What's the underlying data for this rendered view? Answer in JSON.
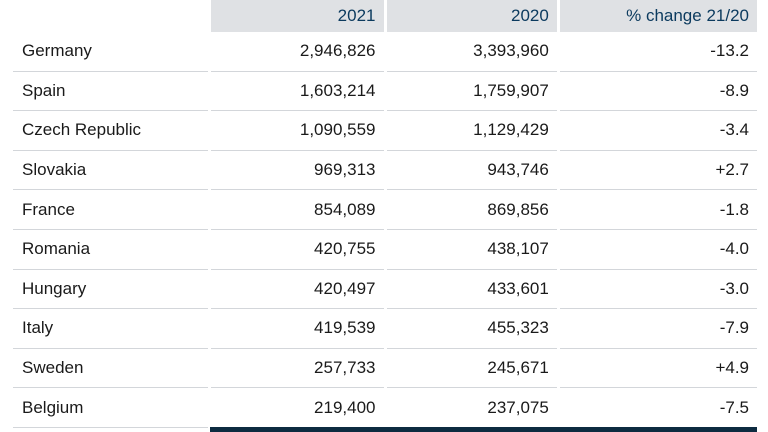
{
  "table": {
    "headers": [
      "",
      "2021",
      "2020",
      "% change 21/20"
    ],
    "rows": [
      {
        "country": "Germany",
        "y2021": "2,946,826",
        "y2020": "3,393,960",
        "change": "-13.2"
      },
      {
        "country": "Spain",
        "y2021": "1,603,214",
        "y2020": "1,759,907",
        "change": "-8.9"
      },
      {
        "country": "Czech Republic",
        "y2021": "1,090,559",
        "y2020": "1,129,429",
        "change": "-3.4"
      },
      {
        "country": "Slovakia",
        "y2021": "969,313",
        "y2020": "943,746",
        "change": "+2.7"
      },
      {
        "country": "France",
        "y2021": "854,089",
        "y2020": "869,856",
        "change": "-1.8"
      },
      {
        "country": "Romania",
        "y2021": "420,755",
        "y2020": "438,107",
        "change": "-4.0"
      },
      {
        "country": "Hungary",
        "y2021": "420,497",
        "y2020": "433,601",
        "change": "-3.0"
      },
      {
        "country": "Italy",
        "y2021": "419,539",
        "y2020": "455,323",
        "change": "-7.9"
      },
      {
        "country": "Sweden",
        "y2021": "257,733",
        "y2020": "245,671",
        "change": "+4.9"
      },
      {
        "country": "Belgium",
        "y2021": "219,400",
        "y2020": "237,075",
        "change": "-7.5"
      }
    ]
  },
  "colors": {
    "header_bg": "#dfe1e4",
    "header_text": "#0b3a5e",
    "row_border": "#d3d6da",
    "bottom_bar": "#0d2b40"
  }
}
